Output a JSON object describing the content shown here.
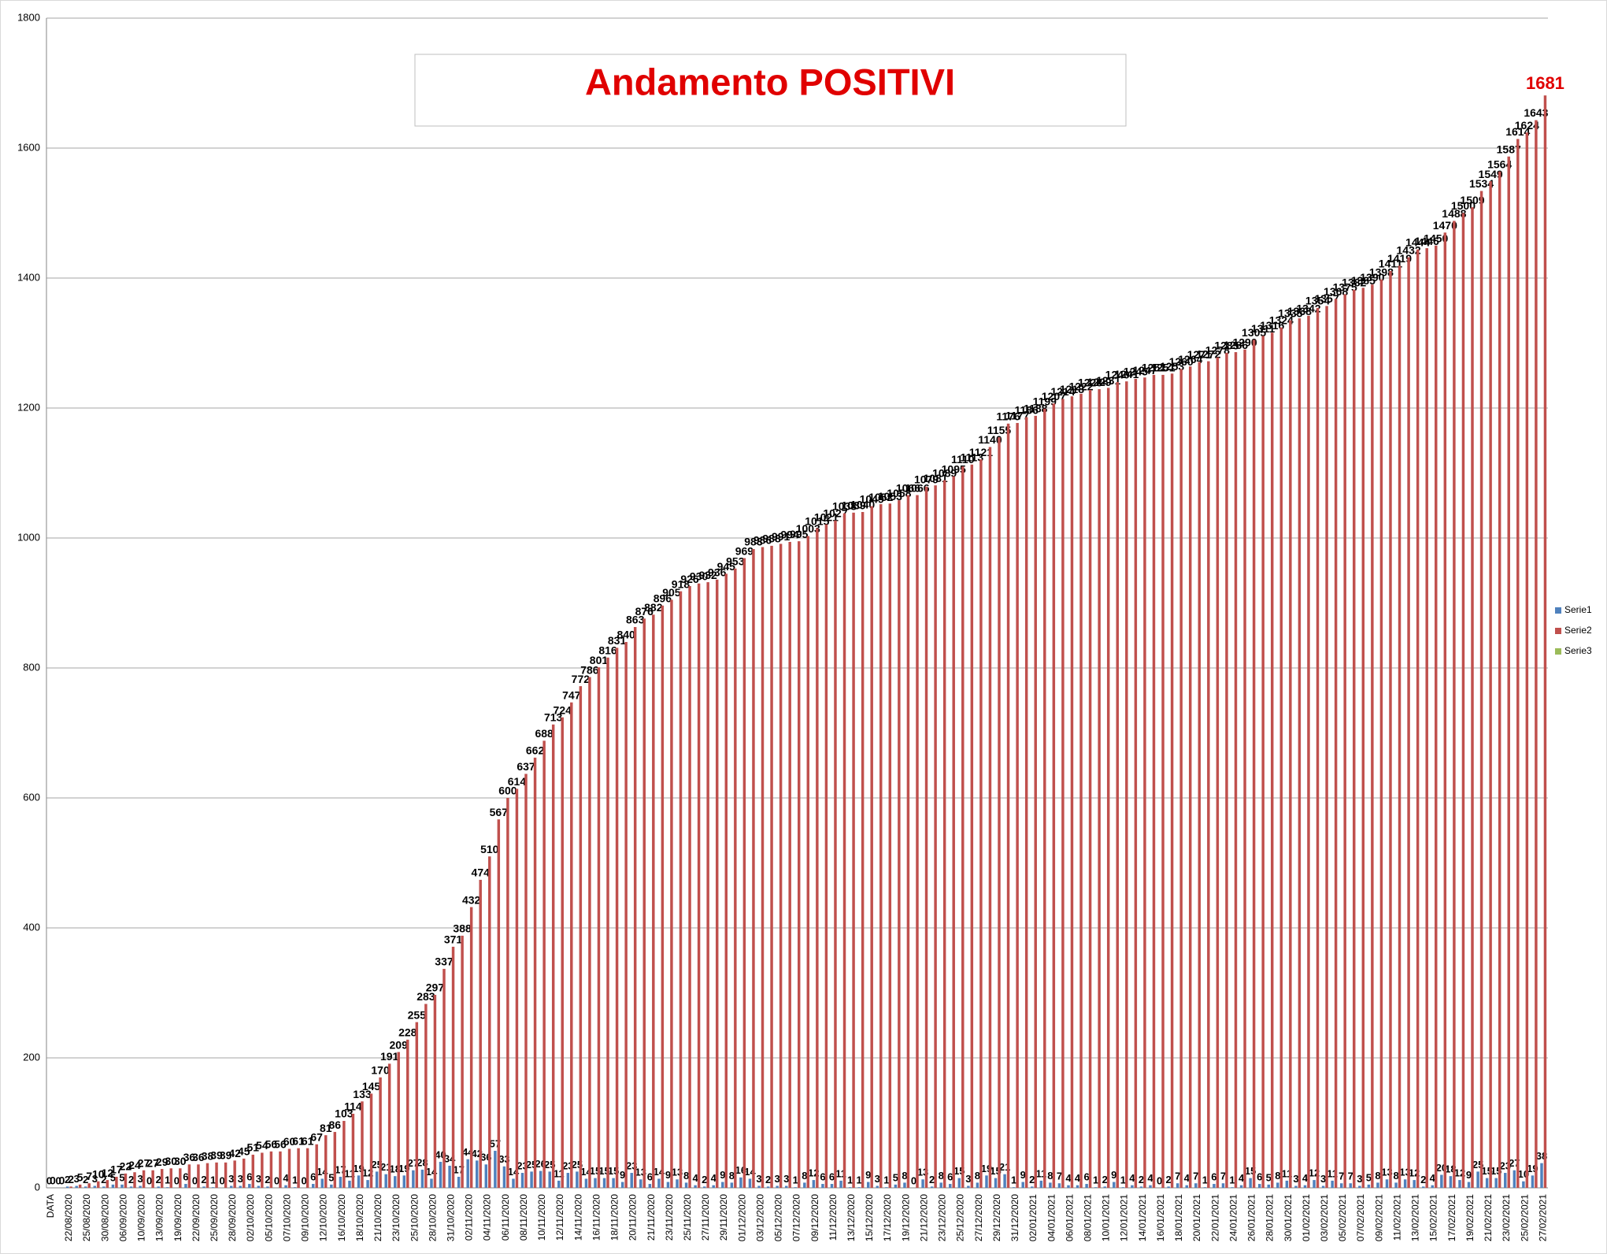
{
  "chart_data": {
    "type": "bar",
    "title": "Andamento POSITIVI",
    "categories": [
      "DATA",
      null,
      "22/08/2020",
      null,
      "25/08/2020",
      null,
      "30/08/2020",
      null,
      "06/09/2020",
      null,
      "10/09/2020",
      null,
      "13/09/2020",
      null,
      "19/09/2020",
      null,
      "22/09/2020",
      null,
      "25/09/2020",
      null,
      "28/09/2020",
      null,
      "02/10/2020",
      null,
      "05/10/2020",
      null,
      "07/10/2020",
      null,
      "09/10/2020",
      null,
      "12/10/2020",
      null,
      "16/10/2020",
      null,
      "18/10/2020",
      null,
      "21/10/2020",
      null,
      "23/10/2020",
      null,
      "25/10/2020",
      null,
      "28/10/2020",
      null,
      "31/10/2020",
      null,
      "02/11/2020",
      null,
      "04/11/2020",
      null,
      "06/11/2020",
      null,
      "08/11/2020",
      null,
      "10/11/2020",
      null,
      "12/11/2020",
      null,
      "14/11/2020",
      null,
      "16/11/2020",
      null,
      "18/11/2020",
      null,
      "20/11/2020",
      null,
      "21/11/2020",
      null,
      "23/11/2020",
      null,
      "25/11/2020",
      null,
      "27/11/2020",
      null,
      "29/11/2020",
      null,
      "01/12/2020",
      null,
      "03/12/2020",
      null,
      "05/12/2020",
      null,
      "07/12/2020",
      null,
      "09/12/2020",
      null,
      "11/12/2020",
      null,
      "13/12/2020",
      null,
      "15/12/2020",
      null,
      "17/12/2020",
      null,
      "19/12/2020",
      null,
      "21/12/2020",
      null,
      "23/12/2020",
      null,
      "25/12/2020",
      null,
      "27/12/2020",
      null,
      "29/12/2020",
      null,
      "31/12/2020",
      null,
      "02/01/2021",
      null,
      "04/01/2021",
      null,
      "06/01/2021",
      null,
      "08/01/2021",
      null,
      "10/01/2021",
      null,
      "12/01/2021",
      null,
      "14/01/2021",
      null,
      "16/01/2021",
      null,
      "18/01/2021",
      null,
      "20/01/2021",
      null,
      "22/01/2021",
      null,
      "24/01/2021",
      null,
      "26/01/2021",
      null,
      "28/01/2021",
      null,
      "30/01/2021",
      null,
      "01/02/2021",
      null,
      "03/02/2021",
      null,
      "05/02/2021",
      null,
      "07/02/2021",
      null,
      "09/02/2021",
      null,
      "11/02/2021",
      null,
      "13/02/2021",
      null,
      "15/02/2021",
      null,
      "17/02/2021",
      null,
      "19/02/2021",
      null,
      "21/02/2021",
      null,
      "23/02/2021",
      null,
      "25/02/2021",
      null,
      "27/02/2021"
    ],
    "series": [
      {
        "name": "Serie1",
        "color": "#4f81bd",
        "values": [
          0,
          0,
          2,
          3,
          2,
          3,
          2,
          5,
          5,
          2,
          3,
          0,
          2,
          1,
          0,
          6,
          0,
          2,
          1,
          0,
          3,
          3,
          6,
          3,
          2,
          0,
          4,
          1,
          0,
          6,
          14,
          5,
          17,
          11,
          19,
          12,
          25,
          21,
          18,
          19,
          27,
          28,
          14,
          40,
          34,
          17,
          44,
          42,
          36,
          57,
          33,
          14,
          23,
          25,
          26,
          25,
          11,
          23,
          25,
          14,
          15,
          15,
          15,
          9,
          23,
          13,
          6,
          14,
          9,
          13,
          8,
          4,
          2,
          4,
          9,
          8,
          16,
          14,
          3,
          2,
          3,
          3,
          1,
          8,
          12,
          6,
          6,
          11,
          1,
          1,
          9,
          3,
          1,
          5,
          8,
          0,
          13,
          2,
          8,
          6,
          15,
          3,
          8,
          19,
          15,
          21,
          1,
          9,
          2,
          11,
          8,
          7,
          4,
          4,
          6,
          1,
          2,
          9,
          1,
          4,
          2,
          4,
          0,
          2,
          7,
          4,
          7,
          1,
          6,
          7,
          1,
          4,
          15,
          6,
          5,
          8,
          11,
          3,
          4,
          12,
          3,
          11,
          7,
          7,
          3,
          5,
          8,
          13,
          8,
          13,
          12,
          2,
          4,
          20,
          18,
          12,
          9,
          25,
          15,
          15,
          23,
          27,
          10,
          19,
          38
        ]
      },
      {
        "name": "Serie2",
        "color": "#c0504d",
        "values": [
          0,
          0,
          2,
          5,
          7,
          10,
          12,
          17,
          22,
          24,
          27,
          27,
          29,
          30,
          30,
          36,
          36,
          38,
          39,
          39,
          42,
          45,
          51,
          54,
          56,
          56,
          60,
          61,
          61,
          67,
          81,
          86,
          103,
          114,
          133,
          145,
          170,
          191,
          209,
          228,
          255,
          283,
          297,
          337,
          371,
          388,
          432,
          474,
          510,
          567,
          600,
          614,
          637,
          662,
          688,
          713,
          724,
          747,
          772,
          786,
          801,
          816,
          831,
          840,
          863,
          876,
          882,
          896,
          905,
          918,
          926,
          930,
          932,
          936,
          945,
          953,
          969,
          983,
          986,
          988,
          991,
          994,
          995,
          1003,
          1015,
          1021,
          1027,
          1038,
          1039,
          1040,
          1049,
          1052,
          1053,
          1058,
          1066,
          1066,
          1079,
          1081,
          1089,
          1095,
          1110,
          1113,
          1121,
          1140,
          1155,
          1176,
          1177,
          1186,
          1188,
          1199,
          1207,
          1214,
          1218,
          1222,
          1228,
          1229,
          1231,
          1240,
          1241,
          1245,
          1247,
          1251,
          1251,
          1253,
          1260,
          1264,
          1271,
          1272,
          1278,
          1285,
          1286,
          1290,
          1305,
          1311,
          1316,
          1324,
          1335,
          1338,
          1342,
          1354,
          1357,
          1368,
          1375,
          1382,
          1385,
          1390,
          1398,
          1411,
          1419,
          1432,
          1444,
          1446,
          1450,
          1470,
          1488,
          1500,
          1509,
          1534,
          1549,
          1564,
          1587,
          1614,
          1624,
          1643,
          1681
        ]
      },
      {
        "name": "Serie3",
        "color": "#9bbb59"
      }
    ],
    "ylim": [
      0,
      1800
    ],
    "yticks": [
      0,
      200,
      400,
      600,
      800,
      1000,
      1200,
      1400,
      1600,
      1800
    ],
    "grid": true,
    "legend": "right"
  }
}
